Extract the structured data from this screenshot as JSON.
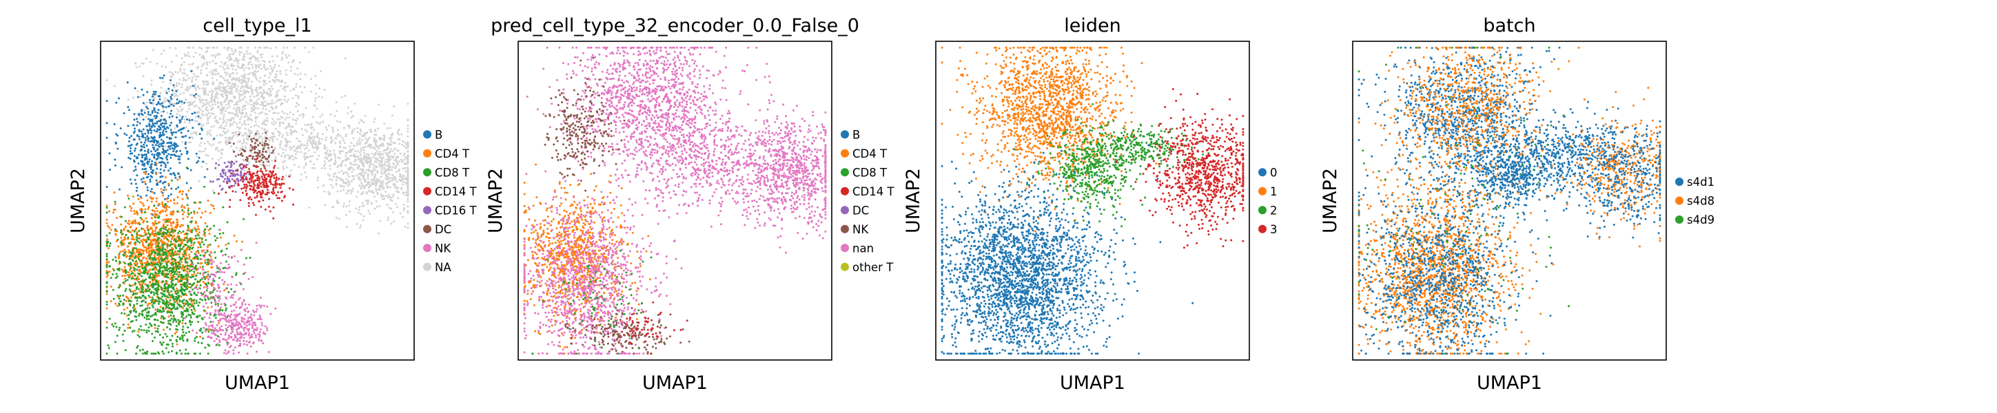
{
  "chart_data": [
    {
      "type": "scatter",
      "title": "cell_type_l1",
      "xlabel": "UMAP1",
      "ylabel": "UMAP2",
      "xticks": "none",
      "yticks": "none",
      "grid": false,
      "legend": "right",
      "categories": [
        {
          "name": "B",
          "color": "#1f77b4"
        },
        {
          "name": "CD4 T",
          "color": "#ff7f0e"
        },
        {
          "name": "CD8 T",
          "color": "#2ca02c"
        },
        {
          "name": "CD14 T",
          "color": "#d62728"
        },
        {
          "name": "CD16 T",
          "color": "#9467bd"
        },
        {
          "name": "DC",
          "color": "#8c564b"
        },
        {
          "name": "NK",
          "color": "#e377c2"
        },
        {
          "name": "NA",
          "color": "#d3d3d3"
        }
      ],
      "clusters": [
        {
          "cat": 7,
          "x": 0.42,
          "y": 0.84,
          "sx": 0.12,
          "sy": 0.08,
          "n": 1100
        },
        {
          "cat": 7,
          "x": 0.6,
          "y": 0.68,
          "sx": 0.14,
          "sy": 0.05,
          "n": 500
        },
        {
          "cat": 7,
          "x": 0.88,
          "y": 0.6,
          "sx": 0.08,
          "sy": 0.07,
          "n": 800
        },
        {
          "cat": 0,
          "x": 0.18,
          "y": 0.68,
          "sx": 0.06,
          "sy": 0.08,
          "n": 550
        },
        {
          "cat": 4,
          "x": 0.42,
          "y": 0.58,
          "sx": 0.03,
          "sy": 0.02,
          "n": 100
        },
        {
          "cat": 5,
          "x": 0.5,
          "y": 0.65,
          "sx": 0.03,
          "sy": 0.025,
          "n": 90
        },
        {
          "cat": 3,
          "x": 0.51,
          "y": 0.55,
          "sx": 0.04,
          "sy": 0.03,
          "n": 240
        },
        {
          "cat": 1,
          "x": 0.19,
          "y": 0.34,
          "sx": 0.08,
          "sy": 0.09,
          "n": 1100
        },
        {
          "cat": 2,
          "x": 0.21,
          "y": 0.24,
          "sx": 0.09,
          "sy": 0.11,
          "n": 1200
        },
        {
          "cat": 6,
          "x": 0.44,
          "y": 0.1,
          "sx": 0.05,
          "sy": 0.04,
          "n": 300
        },
        {
          "cat": 6,
          "x": 0.38,
          "y": 0.24,
          "sx": 0.05,
          "sy": 0.06,
          "n": 120
        }
      ]
    },
    {
      "type": "scatter",
      "title": "pred_cell_type_32_encoder_0.0_False_0",
      "xlabel": "UMAP1",
      "ylabel": "UMAP2",
      "xticks": "none",
      "yticks": "none",
      "grid": false,
      "legend": "right",
      "categories": [
        {
          "name": "B",
          "color": "#1f77b4"
        },
        {
          "name": "CD4 T",
          "color": "#ff7f0e"
        },
        {
          "name": "CD8 T",
          "color": "#2ca02c"
        },
        {
          "name": "CD14 T",
          "color": "#d62728"
        },
        {
          "name": "DC",
          "color": "#9467bd"
        },
        {
          "name": "NK",
          "color": "#8c564b"
        },
        {
          "name": "nan",
          "color": "#e377c2"
        },
        {
          "name": "other T",
          "color": "#bcbd22"
        }
      ],
      "clusters": [
        {
          "cat": 6,
          "x": 0.42,
          "y": 0.82,
          "sx": 0.12,
          "sy": 0.1,
          "n": 1200
        },
        {
          "cat": 6,
          "x": 0.63,
          "y": 0.62,
          "sx": 0.16,
          "sy": 0.07,
          "n": 700
        },
        {
          "cat": 6,
          "x": 0.88,
          "y": 0.58,
          "sx": 0.08,
          "sy": 0.08,
          "n": 700
        },
        {
          "cat": 5,
          "x": 0.2,
          "y": 0.72,
          "sx": 0.05,
          "sy": 0.07,
          "n": 260
        },
        {
          "cat": 1,
          "x": 0.18,
          "y": 0.32,
          "sx": 0.08,
          "sy": 0.1,
          "n": 900
        },
        {
          "cat": 6,
          "x": 0.22,
          "y": 0.24,
          "sx": 0.1,
          "sy": 0.12,
          "n": 1100
        },
        {
          "cat": 5,
          "x": 0.34,
          "y": 0.08,
          "sx": 0.08,
          "sy": 0.03,
          "n": 180
        },
        {
          "cat": 2,
          "x": 0.25,
          "y": 0.18,
          "sx": 0.08,
          "sy": 0.08,
          "n": 80
        },
        {
          "cat": 3,
          "x": 0.4,
          "y": 0.1,
          "sx": 0.05,
          "sy": 0.03,
          "n": 50
        }
      ]
    },
    {
      "type": "scatter",
      "title": "leiden",
      "xlabel": "UMAP1",
      "ylabel": "UMAP2",
      "xticks": "none",
      "yticks": "none",
      "grid": false,
      "legend": "right",
      "categories": [
        {
          "name": "0",
          "color": "#1f77b4"
        },
        {
          "name": "1",
          "color": "#ff7f0e"
        },
        {
          "name": "2",
          "color": "#2ca02c"
        },
        {
          "name": "3",
          "color": "#d62728"
        }
      ],
      "clusters": [
        {
          "cat": 1,
          "x": 0.36,
          "y": 0.78,
          "sx": 0.11,
          "sy": 0.11,
          "n": 1500
        },
        {
          "cat": 2,
          "x": 0.5,
          "y": 0.6,
          "sx": 0.07,
          "sy": 0.06,
          "n": 500
        },
        {
          "cat": 2,
          "x": 0.66,
          "y": 0.67,
          "sx": 0.08,
          "sy": 0.03,
          "n": 250
        },
        {
          "cat": 3,
          "x": 0.86,
          "y": 0.59,
          "sx": 0.08,
          "sy": 0.08,
          "n": 800
        },
        {
          "cat": 0,
          "x": 0.27,
          "y": 0.26,
          "sx": 0.13,
          "sy": 0.13,
          "n": 2400
        }
      ]
    },
    {
      "type": "scatter",
      "title": "batch",
      "xlabel": "UMAP1",
      "ylabel": "UMAP2",
      "xticks": "none",
      "yticks": "none",
      "grid": false,
      "legend": "right",
      "categories": [
        {
          "name": "s4d1",
          "color": "#1f77b4"
        },
        {
          "name": "s4d8",
          "color": "#ff7f0e"
        },
        {
          "name": "s4d9",
          "color": "#2ca02c"
        }
      ],
      "clusters": [
        {
          "cat": 0,
          "x": 0.36,
          "y": 0.76,
          "sx": 0.12,
          "sy": 0.11,
          "n": 1000
        },
        {
          "cat": 1,
          "x": 0.36,
          "y": 0.78,
          "sx": 0.11,
          "sy": 0.11,
          "n": 700
        },
        {
          "cat": 0,
          "x": 0.52,
          "y": 0.58,
          "sx": 0.08,
          "sy": 0.05,
          "n": 500
        },
        {
          "cat": 0,
          "x": 0.7,
          "y": 0.66,
          "sx": 0.09,
          "sy": 0.04,
          "n": 300
        },
        {
          "cat": 1,
          "x": 0.86,
          "y": 0.6,
          "sx": 0.08,
          "sy": 0.08,
          "n": 400
        },
        {
          "cat": 0,
          "x": 0.86,
          "y": 0.58,
          "sx": 0.08,
          "sy": 0.08,
          "n": 400
        },
        {
          "cat": 1,
          "x": 0.26,
          "y": 0.28,
          "sx": 0.12,
          "sy": 0.13,
          "n": 1500
        },
        {
          "cat": 0,
          "x": 0.28,
          "y": 0.26,
          "sx": 0.12,
          "sy": 0.13,
          "n": 1000
        },
        {
          "cat": 2,
          "x": 0.3,
          "y": 0.5,
          "sx": 0.2,
          "sy": 0.25,
          "n": 120
        }
      ]
    }
  ]
}
